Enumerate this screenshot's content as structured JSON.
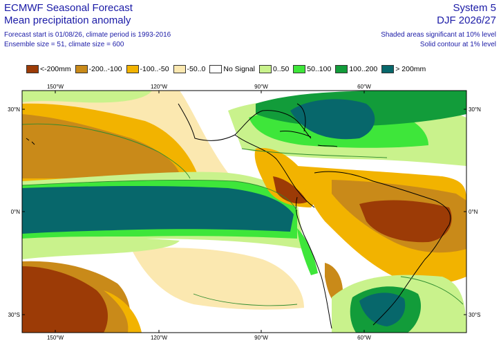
{
  "header": {
    "title": "ECMWF Seasonal Forecast",
    "subtitle": "Mean precipitation anomaly",
    "forecast_info": "Forecast start is 01/08/26, climate period is 1993-2016",
    "ensemble_info": "Ensemble size = 51, climate size = 600",
    "system": "System 5",
    "period": "DJF 2026/27",
    "significance_shaded": "Shaded areas significant at 10% level",
    "significance_contour": "Solid contour at 1% level"
  },
  "legend": [
    {
      "label": "<-200mm",
      "color": "#9c3b06"
    },
    {
      "label": "-200..-100",
      "color": "#c98a19"
    },
    {
      "label": "-100..-50",
      "color": "#f2b300"
    },
    {
      "label": "-50..0",
      "color": "#fbe8b0"
    },
    {
      "label": "No Signal",
      "color": "#ffffff"
    },
    {
      "label": "0..50",
      "color": "#c9f28c"
    },
    {
      "label": "50..100",
      "color": "#3ee63a"
    },
    {
      "label": "100..200",
      "color": "#129c3a"
    },
    {
      "label": "> 200mm",
      "color": "#07676b"
    }
  ],
  "axes": {
    "lon_top": [
      "150°W",
      "120°W",
      "90°W",
      "60°W"
    ],
    "lon_bottom": [
      "150°W",
      "120°W",
      "90°W",
      "60°W"
    ],
    "lat_left": [
      "30°N",
      "0°N",
      "30°S"
    ],
    "lat_right": [
      "30°N",
      "0°N",
      "30°S"
    ]
  }
}
